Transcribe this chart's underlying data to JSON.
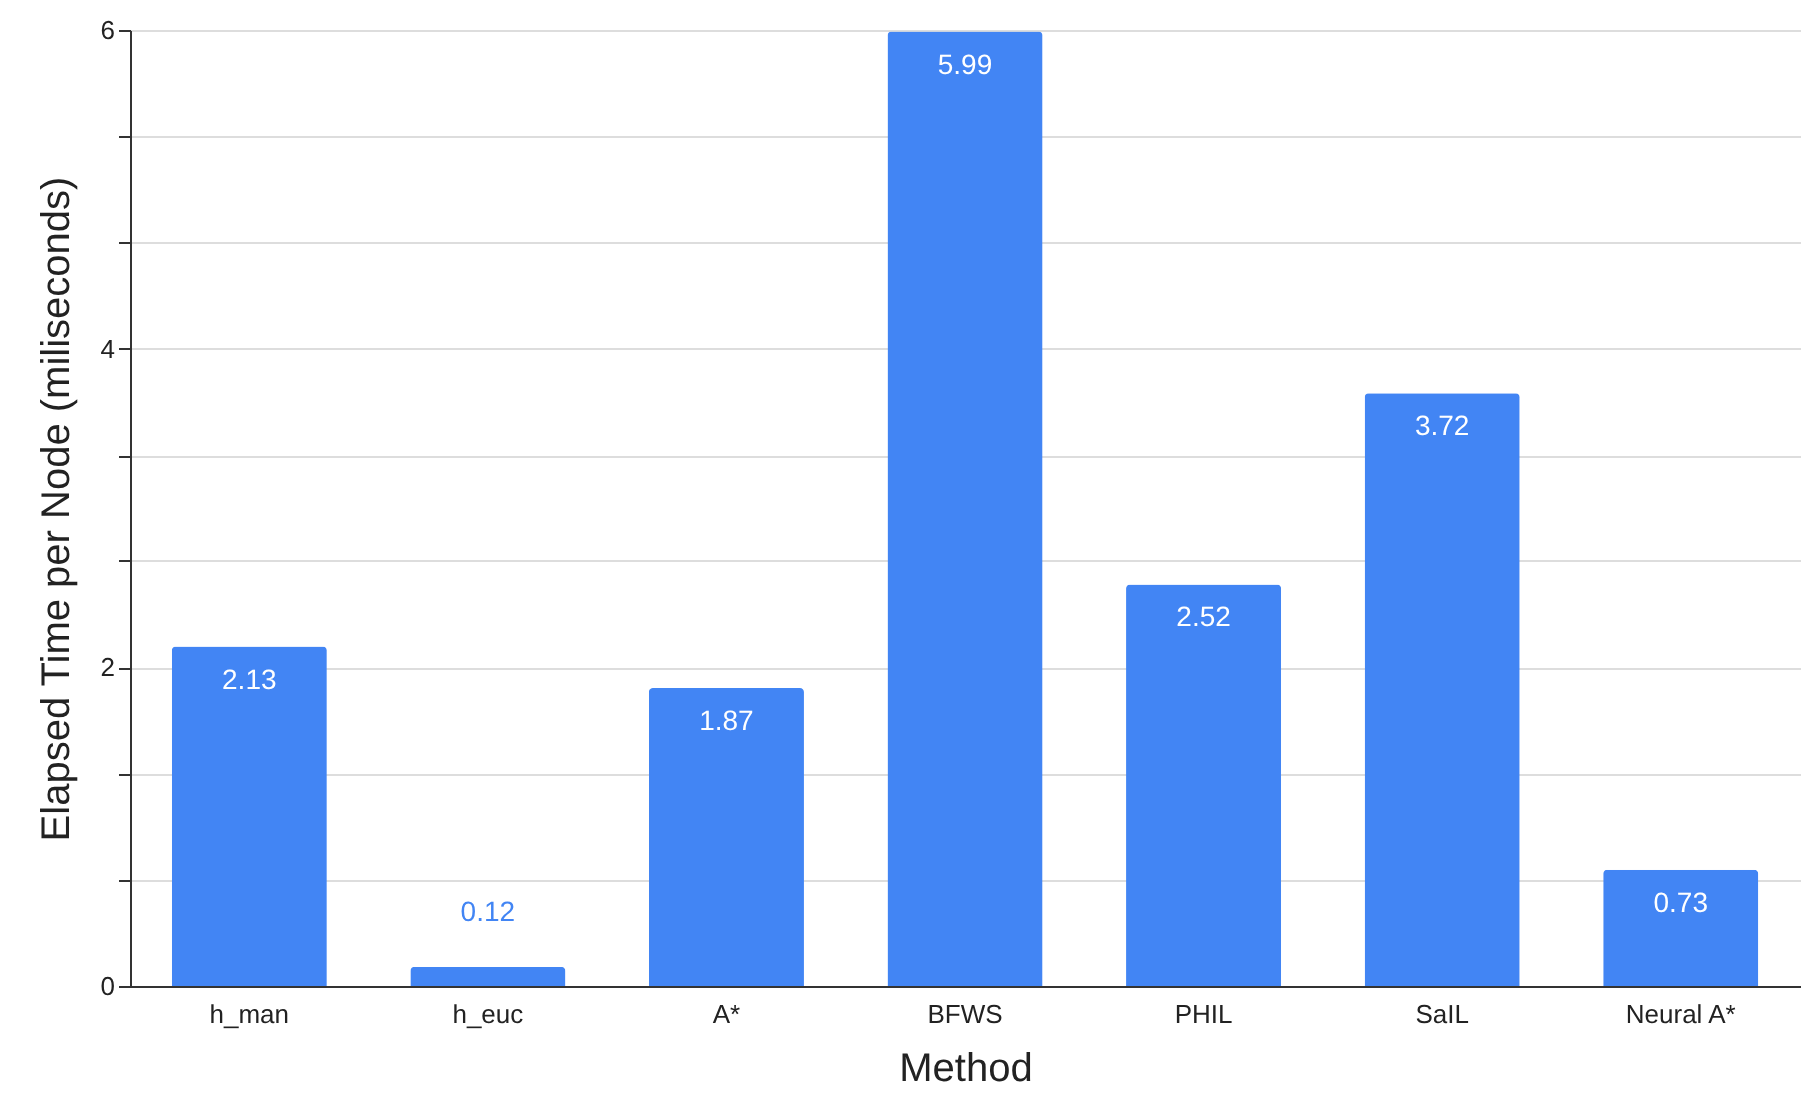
{
  "chart_data": {
    "type": "bar",
    "xlabel": "Method",
    "ylabel": "Elapsed Time per Node (miliseconds)",
    "categories": [
      "h_man",
      "h_euc",
      "A*",
      "BFWS",
      "PHIL",
      "SaIL",
      "Neural A*"
    ],
    "values": [
      2.13,
      0.12,
      1.87,
      5.99,
      2.52,
      3.72,
      0.73
    ],
    "color": "#4285f4",
    "ylim": [
      0,
      6
    ],
    "yticks": [
      0,
      {
        "value": 0.67,
        "label": null
      },
      {
        "value": 1.33,
        "label": null
      },
      2,
      {
        "value": 2.67,
        "label": null
      },
      {
        "value": 3.33,
        "label": null
      },
      4,
      {
        "value": 4.67,
        "label": null
      },
      {
        "value": 5.33,
        "label": null
      },
      6
    ],
    "grid": "y",
    "data_labels": true
  }
}
